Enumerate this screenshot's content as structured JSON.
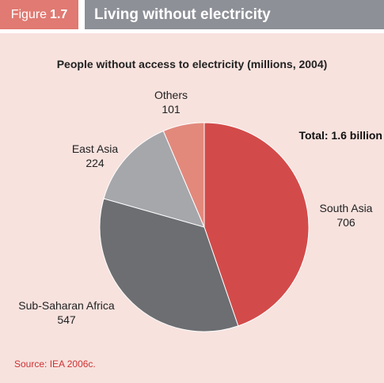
{
  "figure": {
    "tag": "Figure",
    "number": "1.7",
    "title": "Living without electricity"
  },
  "chart_data": {
    "type": "pie",
    "title": "People without access to electricity (millions, 2004)",
    "total_label": "Total: 1.6 billion",
    "slices": [
      {
        "label": "South Asia",
        "value": 706,
        "value_label": "706",
        "color": "#d24b4a"
      },
      {
        "label": "Sub-Saharan Africa",
        "value": 547,
        "value_label": "547",
        "color": "#6d6e72"
      },
      {
        "label": "East Asia",
        "value": 224,
        "value_label": "224",
        "color": "#a6a7ab"
      },
      {
        "label": "Others",
        "value": 101,
        "value_label": "101",
        "color": "#e2897c"
      }
    ]
  },
  "source": {
    "prefix": "Source: ",
    "ref": "IEA 2006c."
  },
  "colors": {
    "panel_bg": "#f7e2de",
    "tag_bg": "#e07a72",
    "title_bg": "#8e9097"
  }
}
